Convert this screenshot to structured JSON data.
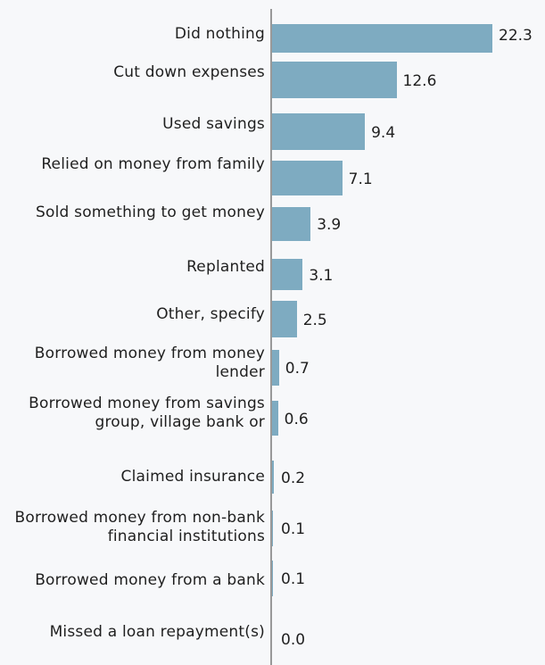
{
  "chart_data": {
    "type": "bar",
    "orientation": "horizontal",
    "categories": [
      "Did nothing",
      "Cut down expenses",
      "Used savings",
      "Relied on money from family",
      "Sold something to get money",
      "Replanted",
      "Other, specify",
      "Borrowed money from money lender",
      "Borrowed money from savings group, village bank or",
      "Claimed insurance",
      "Borrowed money from non-bank financial institutions",
      "Borrowed money from a bank",
      "Missed a loan repayment(s)"
    ],
    "values": [
      22.3,
      12.6,
      9.4,
      7.1,
      3.9,
      3.1,
      2.5,
      0.7,
      0.6,
      0.2,
      0.1,
      0.1,
      0.0
    ],
    "value_labels": [
      "22.3",
      "12.6",
      "9.4",
      "7.1",
      "3.9",
      "3.1",
      "2.5",
      "0.7",
      "0.6",
      "0.2",
      "0.1",
      "0.1",
      "0.0"
    ],
    "xlim": [
      0,
      22.3
    ],
    "bar_color": "#7eabc1",
    "grid": false,
    "legend": "none"
  }
}
